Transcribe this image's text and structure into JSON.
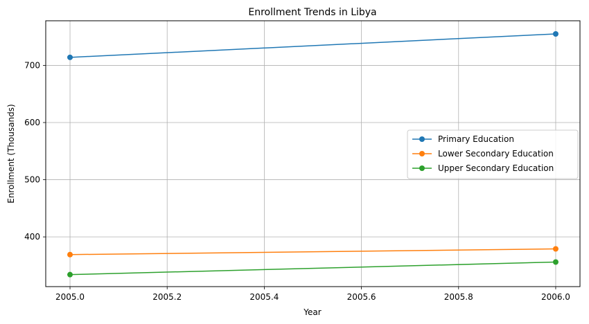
{
  "chart_data": {
    "type": "line",
    "title": "Enrollment Trends in Libya",
    "xlabel": "Year",
    "ylabel": "Enrollment (Thousands)",
    "x": [
      2005.0,
      2006.0
    ],
    "xlim": [
      2004.95,
      2006.05
    ],
    "ylim": [
      313,
      778
    ],
    "xticks": [
      2005.0,
      2005.2,
      2005.4,
      2005.6,
      2005.8,
      2006.0
    ],
    "xtick_labels": [
      "2005.0",
      "2005.2",
      "2005.4",
      "2005.6",
      "2005.8",
      "2006.0"
    ],
    "yticks": [
      400,
      500,
      600,
      700
    ],
    "ytick_labels": [
      "400",
      "500",
      "600",
      "700"
    ],
    "grid": true,
    "legend_position": "center-right",
    "series": [
      {
        "name": "Primary Education",
        "values": [
          714,
          755
        ],
        "color": "#1f77b4",
        "marker": "circle"
      },
      {
        "name": "Lower Secondary Education",
        "values": [
          369,
          379
        ],
        "color": "#ff7f0e",
        "marker": "circle"
      },
      {
        "name": "Upper Secondary Education",
        "values": [
          334,
          356
        ],
        "color": "#2ca02c",
        "marker": "circle"
      }
    ]
  }
}
